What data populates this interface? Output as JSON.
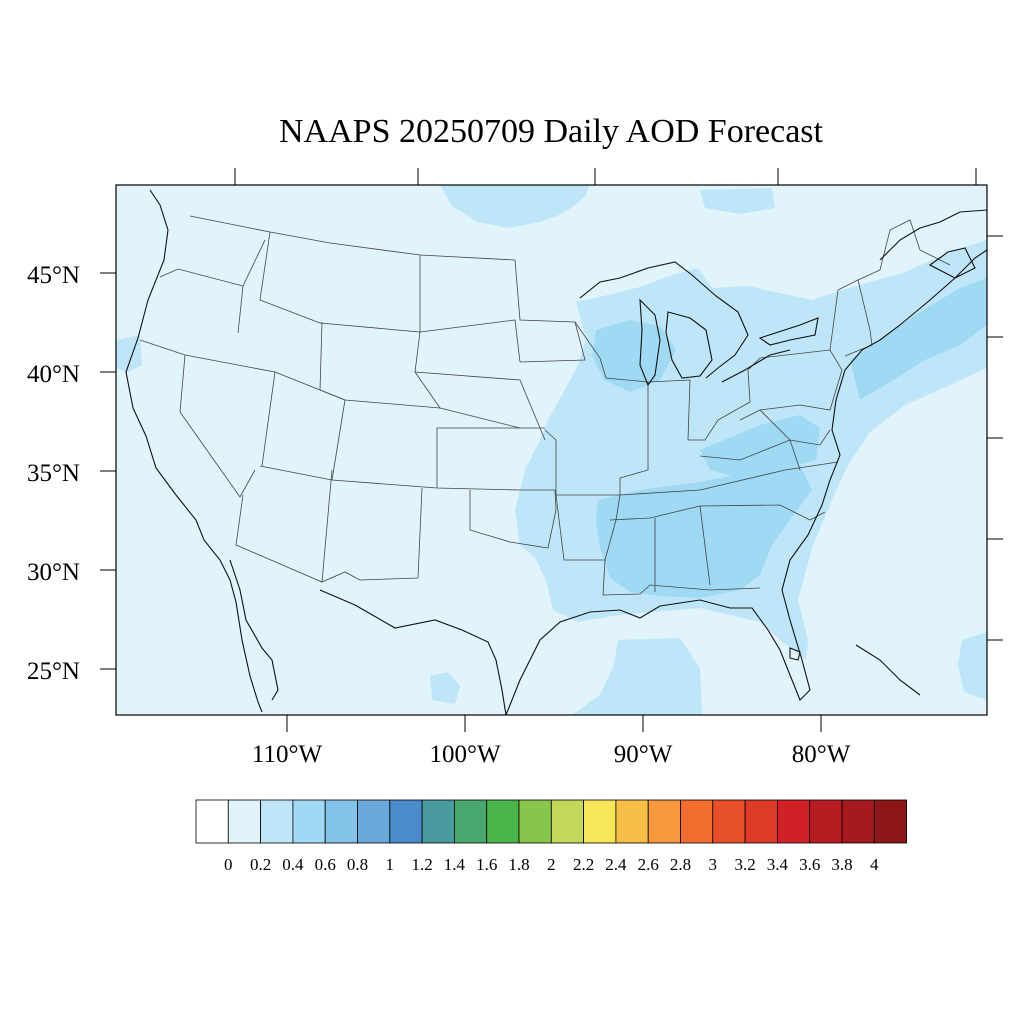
{
  "title": "NAAPS 20250709 Daily AOD Forecast",
  "latitude_labels": [
    "45°N",
    "40°N",
    "35°N",
    "30°N",
    "25°N"
  ],
  "longitude_labels": [
    "110°W",
    "100°W",
    "90°W",
    "80°W"
  ],
  "colorbar": {
    "labels": [
      "0",
      "0.2",
      "0.4",
      "0.6",
      "0.8",
      "1",
      "1.2",
      "1.4",
      "1.6",
      "1.8",
      "2",
      "2.2",
      "2.4",
      "2.6",
      "2.8",
      "3",
      "3.2",
      "3.4",
      "3.6",
      "3.8",
      "4"
    ],
    "colors": [
      "#ffffff",
      "#e1f3fb",
      "#bfe6f8",
      "#9fd9f3",
      "#83c3e8",
      "#6aa9dc",
      "#4a8cc9",
      "#4a9b9f",
      "#49a870",
      "#4ab54a",
      "#88c54c",
      "#c4d758",
      "#f7e65a",
      "#f7bf47",
      "#f79a3f",
      "#f26d2e",
      "#e8502a",
      "#dd3a28",
      "#d12127",
      "#b71c23",
      "#a51a1f",
      "#8e1518"
    ]
  },
  "map": {
    "background_color": "#e1f3fb",
    "plume_colors": {
      "light": "#bfe6f8",
      "medium": "#9fd9f3"
    }
  }
}
